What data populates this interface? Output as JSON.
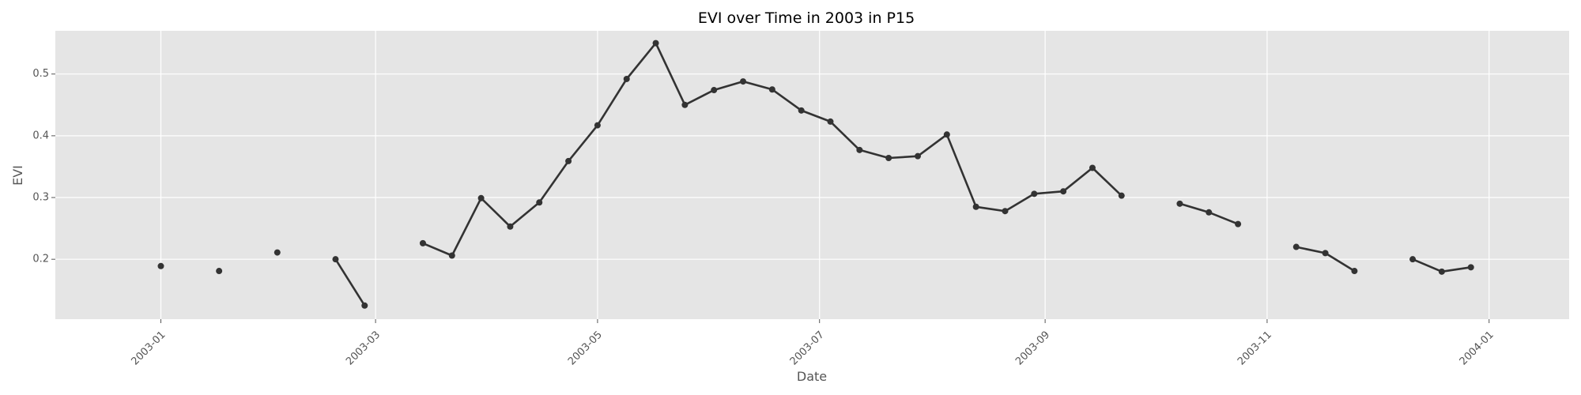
{
  "chart_data": {
    "type": "line",
    "title": "EVI over Time in 2003 in P15",
    "xlabel": "Date",
    "ylabel": "EVI",
    "x_ticks": [
      "2003-01",
      "2003-03",
      "2003-05",
      "2003-07",
      "2003-09",
      "2003-11",
      "2004-01"
    ],
    "y_ticks": [
      "0.2",
      "0.3",
      "0.4",
      "0.5"
    ],
    "xlim": [
      "2002-12-03",
      "2004-01-23"
    ],
    "ylim": [
      0.103,
      0.57
    ],
    "grid": true,
    "background": "#e5e5e5",
    "line_color": "#333333",
    "series": [
      {
        "points": [
          {
            "x": "2003-01-01",
            "y": 0.189
          },
          {
            "x": "2003-01-17",
            "y": 0.181
          },
          {
            "x": "2003-02-02",
            "y": 0.211
          },
          {
            "x": "2003-02-18",
            "y": 0.2
          },
          {
            "x": "2003-02-26",
            "y": 0.125
          },
          {
            "x": "2003-03-14",
            "y": 0.226
          },
          {
            "x": "2003-03-22",
            "y": 0.206
          },
          {
            "x": "2003-03-30",
            "y": 0.299
          },
          {
            "x": "2003-04-07",
            "y": 0.253
          },
          {
            "x": "2003-04-15",
            "y": 0.292
          },
          {
            "x": "2003-04-23",
            "y": 0.359
          },
          {
            "x": "2003-05-01",
            "y": 0.417
          },
          {
            "x": "2003-05-09",
            "y": 0.492
          },
          {
            "x": "2003-05-17",
            "y": 0.55
          },
          {
            "x": "2003-05-25",
            "y": 0.45
          },
          {
            "x": "2003-06-02",
            "y": 0.474
          },
          {
            "x": "2003-06-10",
            "y": 0.488
          },
          {
            "x": "2003-06-18",
            "y": 0.475
          },
          {
            "x": "2003-06-26",
            "y": 0.441
          },
          {
            "x": "2003-07-04",
            "y": 0.423
          },
          {
            "x": "2003-07-12",
            "y": 0.377
          },
          {
            "x": "2003-07-20",
            "y": 0.364
          },
          {
            "x": "2003-07-28",
            "y": 0.367
          },
          {
            "x": "2003-08-05",
            "y": 0.402
          },
          {
            "x": "2003-08-13",
            "y": 0.285
          },
          {
            "x": "2003-08-21",
            "y": 0.278
          },
          {
            "x": "2003-08-29",
            "y": 0.306
          },
          {
            "x": "2003-09-06",
            "y": 0.31
          },
          {
            "x": "2003-09-14",
            "y": 0.348
          },
          {
            "x": "2003-09-22",
            "y": 0.303
          },
          {
            "x": "2003-10-08",
            "y": 0.29
          },
          {
            "x": "2003-10-16",
            "y": 0.276
          },
          {
            "x": "2003-10-24",
            "y": 0.257
          },
          {
            "x": "2003-11-09",
            "y": 0.22
          },
          {
            "x": "2003-11-17",
            "y": 0.21
          },
          {
            "x": "2003-11-25",
            "y": 0.181
          },
          {
            "x": "2003-12-11",
            "y": 0.2
          },
          {
            "x": "2003-12-19",
            "y": 0.18
          },
          {
            "x": "2003-12-27",
            "y": 0.187
          }
        ]
      }
    ]
  }
}
